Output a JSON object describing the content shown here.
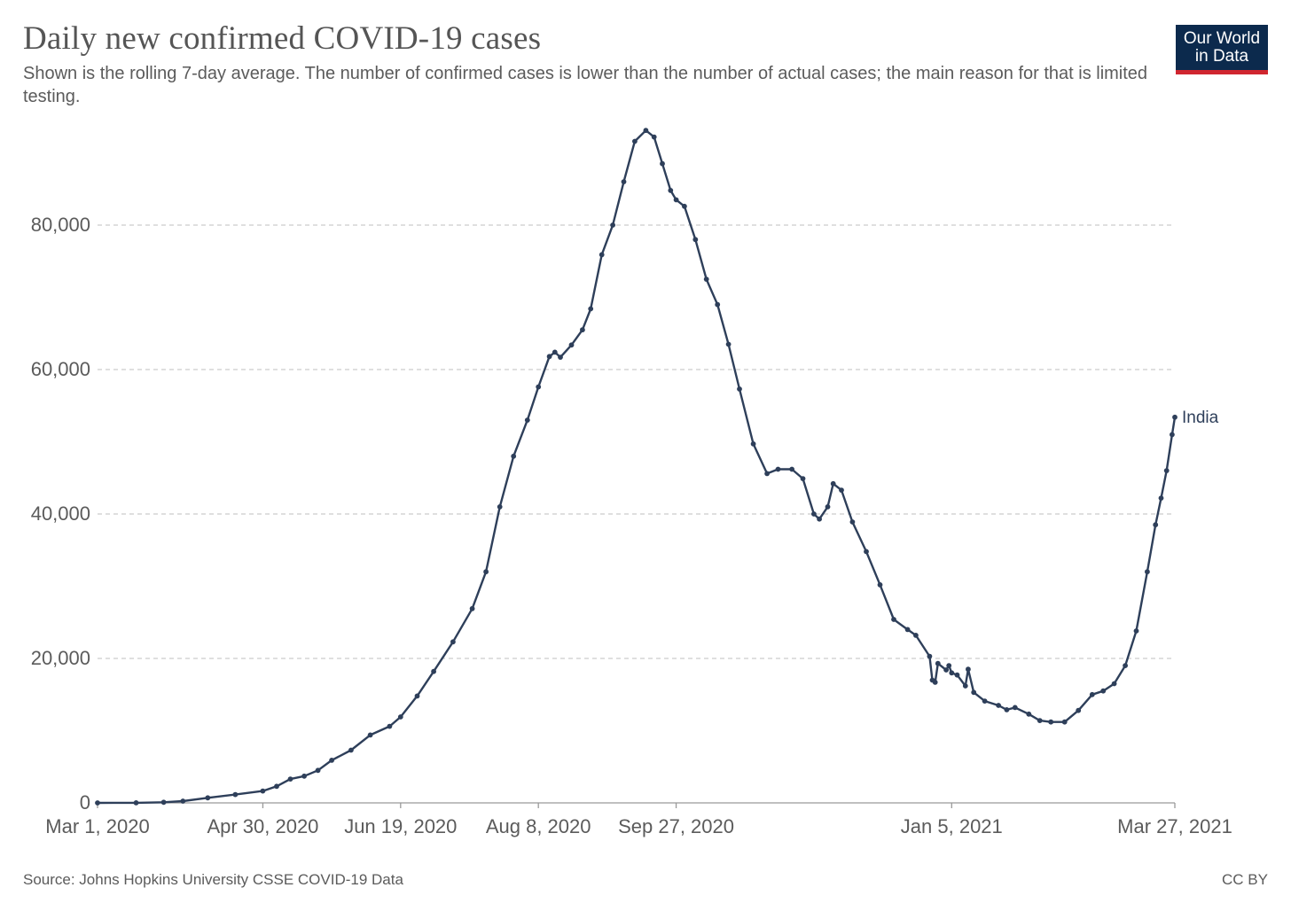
{
  "header": {
    "title": "Daily new confirmed COVID-19 cases",
    "subtitle": "Shown is the rolling 7-day average. The number of confirmed cases is lower than the number of actual cases; the main reason for that is limited testing."
  },
  "logo": {
    "line1": "Our World",
    "line2": "in Data"
  },
  "footer": {
    "source": "Source: Johns Hopkins University CSSE COVID-19 Data",
    "license": "CC BY"
  },
  "colors": {
    "line": "#2e3f5a",
    "grid": "#cccccc",
    "logo_bg": "#0c2a4d",
    "logo_accent": "#d0262f"
  },
  "chart_data": {
    "type": "line",
    "title": "Daily new confirmed COVID-19 cases",
    "xlabel": "",
    "ylabel": "",
    "x_type": "date",
    "xlim": [
      "2020-03-01",
      "2021-03-27"
    ],
    "ylim": [
      0,
      93000
    ],
    "yticks": [
      0,
      20000,
      40000,
      60000,
      80000
    ],
    "ytick_labels": [
      "0",
      "20,000",
      "40,000",
      "60,000",
      "80,000"
    ],
    "xticks": [
      "2020-03-01",
      "2020-04-30",
      "2020-06-19",
      "2020-08-08",
      "2020-09-27",
      "2021-01-05",
      "2021-03-27"
    ],
    "xtick_labels": [
      "Mar 1, 2020",
      "Apr 30, 2020",
      "Jun 19, 2020",
      "Aug 8, 2020",
      "Sep 27, 2020",
      "Jan 5, 2021",
      "Mar 27, 2021"
    ],
    "grid": "horizontal dashed",
    "series": [
      {
        "name": "India",
        "points": [
          [
            "2020-03-01",
            0
          ],
          [
            "2020-03-15",
            15
          ],
          [
            "2020-03-25",
            80
          ],
          [
            "2020-04-01",
            250
          ],
          [
            "2020-04-10",
            700
          ],
          [
            "2020-04-20",
            1150
          ],
          [
            "2020-04-30",
            1650
          ],
          [
            "2020-05-05",
            2300
          ],
          [
            "2020-05-10",
            3300
          ],
          [
            "2020-05-15",
            3700
          ],
          [
            "2020-05-20",
            4500
          ],
          [
            "2020-05-25",
            5900
          ],
          [
            "2020-06-01",
            7300
          ],
          [
            "2020-06-08",
            9400
          ],
          [
            "2020-06-15",
            10600
          ],
          [
            "2020-06-19",
            11900
          ],
          [
            "2020-06-25",
            14800
          ],
          [
            "2020-07-01",
            18200
          ],
          [
            "2020-07-08",
            22300
          ],
          [
            "2020-07-15",
            26900
          ],
          [
            "2020-07-20",
            32000
          ],
          [
            "2020-07-25",
            41000
          ],
          [
            "2020-07-30",
            48000
          ],
          [
            "2020-08-04",
            53000
          ],
          [
            "2020-08-08",
            57600
          ],
          [
            "2020-08-12",
            61800
          ],
          [
            "2020-08-14",
            62400
          ],
          [
            "2020-08-16",
            61700
          ],
          [
            "2020-08-20",
            63400
          ],
          [
            "2020-08-24",
            65500
          ],
          [
            "2020-08-27",
            68400
          ],
          [
            "2020-08-31",
            75900
          ],
          [
            "2020-09-04",
            80000
          ],
          [
            "2020-09-08",
            86000
          ],
          [
            "2020-09-12",
            91600
          ],
          [
            "2020-09-16",
            93100
          ],
          [
            "2020-09-19",
            92200
          ],
          [
            "2020-09-22",
            88500
          ],
          [
            "2020-09-25",
            84800
          ],
          [
            "2020-09-27",
            83500
          ],
          [
            "2020-09-30",
            82600
          ],
          [
            "2020-10-04",
            78000
          ],
          [
            "2020-10-08",
            72500
          ],
          [
            "2020-10-12",
            69000
          ],
          [
            "2020-10-16",
            63500
          ],
          [
            "2020-10-20",
            57300
          ],
          [
            "2020-10-25",
            49700
          ],
          [
            "2020-10-30",
            45600
          ],
          [
            "2020-11-03",
            46200
          ],
          [
            "2020-11-08",
            46200
          ],
          [
            "2020-11-12",
            44900
          ],
          [
            "2020-11-16",
            40000
          ],
          [
            "2020-11-18",
            39300
          ],
          [
            "2020-11-21",
            41000
          ],
          [
            "2020-11-23",
            44200
          ],
          [
            "2020-11-26",
            43300
          ],
          [
            "2020-11-30",
            38900
          ],
          [
            "2020-12-05",
            34800
          ],
          [
            "2020-12-10",
            30200
          ],
          [
            "2020-12-15",
            25400
          ],
          [
            "2020-12-20",
            24000
          ],
          [
            "2020-12-23",
            23200
          ],
          [
            "2020-12-28",
            20300
          ],
          [
            "2020-12-29",
            17000
          ],
          [
            "2020-12-30",
            16700
          ],
          [
            "2020-12-31",
            19300
          ],
          [
            "2021-01-03",
            18400
          ],
          [
            "2021-01-04",
            19000
          ],
          [
            "2021-01-05",
            18000
          ],
          [
            "2021-01-07",
            17700
          ],
          [
            "2021-01-10",
            16200
          ],
          [
            "2021-01-11",
            18500
          ],
          [
            "2021-01-13",
            15300
          ],
          [
            "2021-01-17",
            14100
          ],
          [
            "2021-01-22",
            13500
          ],
          [
            "2021-01-25",
            12900
          ],
          [
            "2021-01-28",
            13200
          ],
          [
            "2021-02-02",
            12300
          ],
          [
            "2021-02-06",
            11400
          ],
          [
            "2021-02-10",
            11200
          ],
          [
            "2021-02-15",
            11200
          ],
          [
            "2021-02-20",
            12800
          ],
          [
            "2021-02-25",
            15000
          ],
          [
            "2021-03-01",
            15500
          ],
          [
            "2021-03-05",
            16500
          ],
          [
            "2021-03-09",
            19000
          ],
          [
            "2021-03-13",
            23800
          ],
          [
            "2021-03-17",
            32000
          ],
          [
            "2021-03-20",
            38500
          ],
          [
            "2021-03-22",
            42200
          ],
          [
            "2021-03-24",
            46000
          ],
          [
            "2021-03-26",
            51000
          ],
          [
            "2021-03-27",
            53400
          ]
        ]
      }
    ]
  }
}
